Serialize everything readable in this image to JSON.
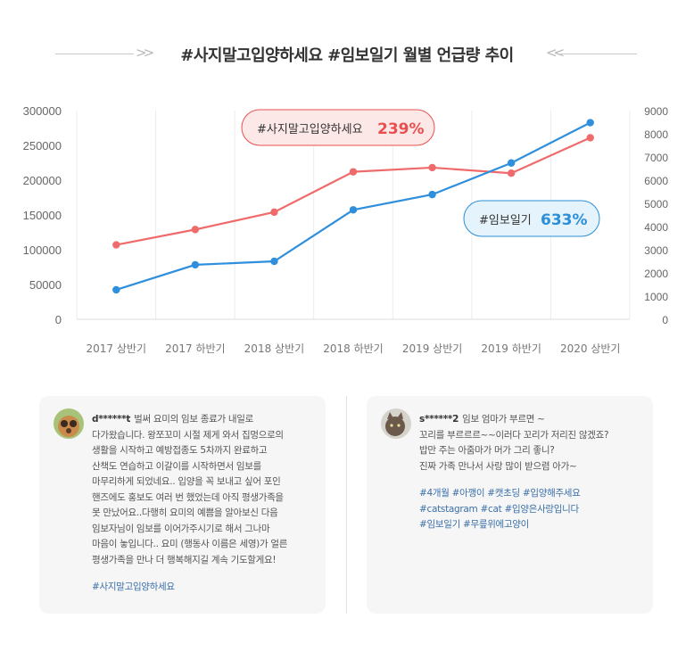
{
  "title": "#사지말고입양하세요 #임보일기 월별 언급량 추이",
  "chart_data": {
    "type": "line",
    "categories": [
      "2017 상반기",
      "2017 하반기",
      "2018 상반기",
      "2018 하반기",
      "2019 상반기",
      "2019 하반기",
      "2020 상반기"
    ],
    "y_left": {
      "ticks": [
        0,
        50000,
        100000,
        150000,
        200000,
        250000,
        300000
      ],
      "ylim": [
        0,
        300000
      ]
    },
    "y_right": {
      "ticks": [
        0,
        1000,
        2000,
        3000,
        4000,
        5000,
        6000,
        7000,
        8000,
        9000
      ],
      "ylim": [
        0,
        9000
      ]
    },
    "grid": "vertical",
    "series": [
      {
        "name": "#사지말고입양하세요",
        "axis": "left",
        "color": "#ef6a6a",
        "values": [
          107000,
          129000,
          154000,
          212000,
          218000,
          210000,
          261000
        ]
      },
      {
        "name": "#임보일기",
        "axis": "right",
        "color": "#2f8fdc",
        "values": [
          1270,
          2350,
          2500,
          4720,
          5380,
          6740,
          8480
        ]
      }
    ],
    "callouts": [
      {
        "label": "#사지말고입양하세요",
        "value": "239%",
        "color": "#e94f4f",
        "bg": "#fde8e8"
      },
      {
        "label": "#임보일기",
        "value": "633%",
        "color": "#2b8fd8",
        "bg": "#e4f3fc"
      }
    ]
  },
  "posts": [
    {
      "user": "d******t",
      "text": "벌써 요미의 임보 종료가 내일로\n다가왔습니다. 왕쪼꼬미 시절 제게 와서 집멍으로의\n생활을 시작하고 예방접종도 5차까지 완료하고\n산책도 연습하고 이갈이를 시작하면서 임보를\n마무리하게 되었네요.. 입양을 꼭 보내고 싶어 포인\n핸즈에도 홍보도 여러 번 했었는데 아직 평생가족을\n못 만났어요..다행히 요미의 예쁨을 알아보신 다음\n임보자님이 임보를 이어가주시기로 해서 그나마\n마음이 놓입니다.. 요미 (행동사 이름은 세영)가 얼른\n평생가족을 만나 더 행복해지길 계속 기도할게요!",
      "tags": "#사지말고입양하세요"
    },
    {
      "user": "s******2",
      "text": "임보 엄마가 부르면 ~\n꼬리를 부르르르~~이러다 꼬리가 저리진 않겠죠?\n밥만 주는 아줌마가 머가 그리 좋니?\n진짜 가족 만나서 사랑 많이 받으렴 아가~",
      "tags": "#4개월 #아깽이 #캣초딩 #입양해주세요\n#catstagram #cat #입양은사랑입니다\n#임보일기 #무릎위에고양이"
    }
  ]
}
